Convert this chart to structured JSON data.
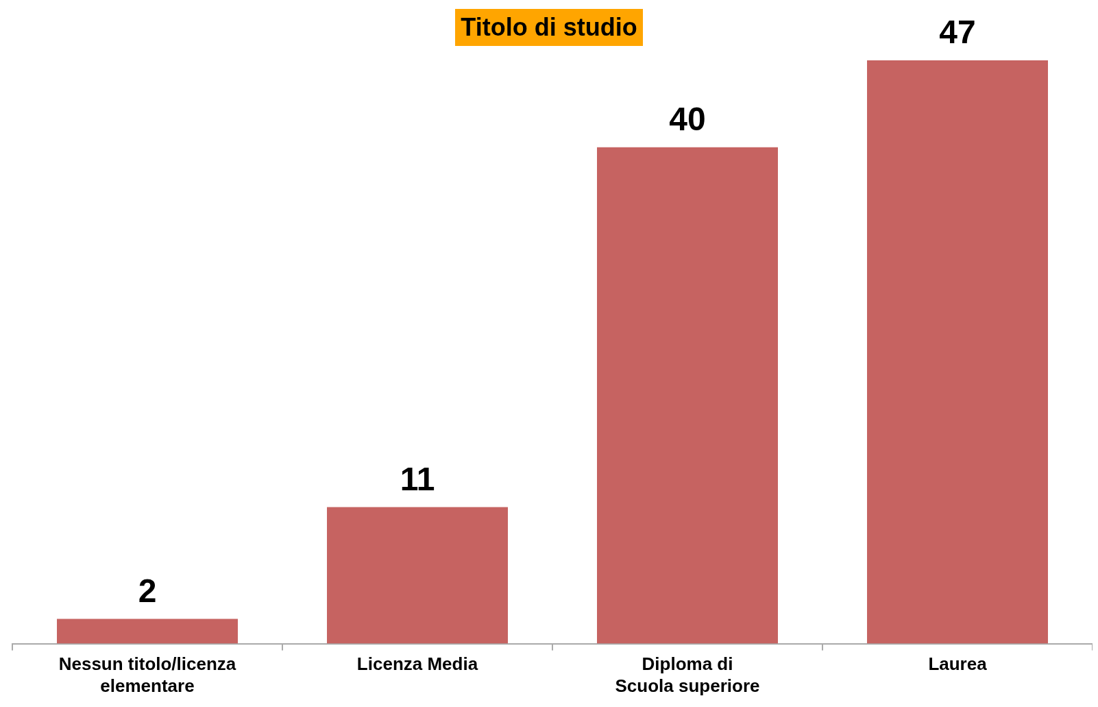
{
  "chart_data": {
    "type": "bar",
    "title": "Titolo di studio",
    "categories": [
      "Nessun titolo/licenza elementare",
      "Licenza Media",
      "Diploma di Scuola superiore",
      "Laurea"
    ],
    "values": [
      2,
      11,
      40,
      47
    ],
    "color": "#c66361",
    "data_labels": true,
    "grid": false,
    "legend": false,
    "tick_labels": "x"
  }
}
